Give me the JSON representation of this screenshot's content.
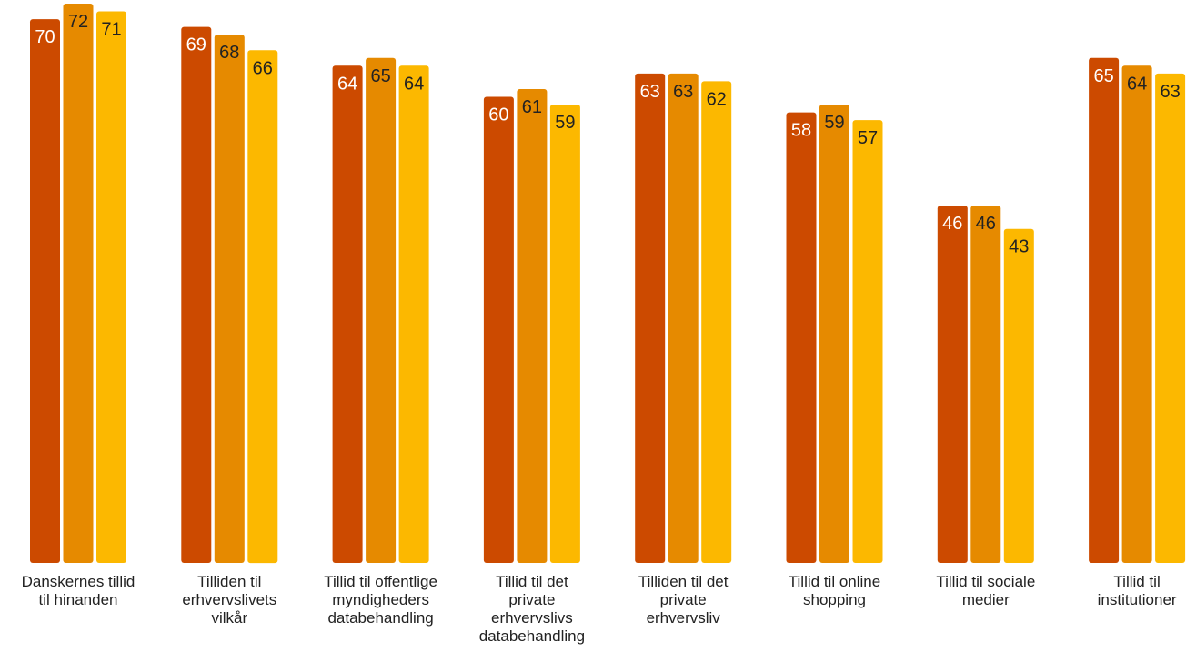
{
  "chart_data": {
    "type": "bar",
    "categories": [
      [
        "Danskernes tillid",
        "til hinanden"
      ],
      [
        "Tilliden til",
        "erhvervslivets",
        "vilkår"
      ],
      [
        "Tillid til offentlige",
        "myndigheders",
        "databehandling"
      ],
      [
        "Tillid til det",
        "private",
        "erhvervslivs",
        "databehandling"
      ],
      [
        "Tilliden til det",
        "private",
        "erhvervsliv"
      ],
      [
        "Tillid til online",
        "shopping"
      ],
      [
        "Tillid til sociale",
        "medier"
      ],
      [
        "Tillid til",
        "institutioner"
      ]
    ],
    "series": [
      {
        "values": [
          70,
          69,
          64,
          60,
          63,
          58,
          46,
          65
        ],
        "color": "#cc4a00",
        "label_color": "#ffffff"
      },
      {
        "values": [
          72,
          68,
          65,
          61,
          63,
          59,
          46,
          64
        ],
        "color": "#e68a00",
        "label_color": "#222222"
      },
      {
        "values": [
          71,
          66,
          64,
          59,
          62,
          57,
          43,
          63
        ],
        "color": "#fcb800",
        "label_color": "#222222"
      }
    ],
    "ylim": [
      0,
      72
    ],
    "grid": false,
    "legend": "none"
  }
}
